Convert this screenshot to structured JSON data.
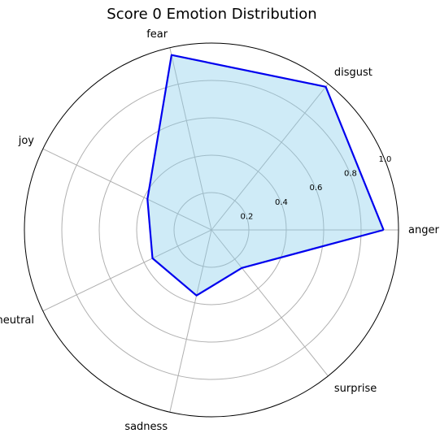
{
  "chart_data": {
    "type": "radar",
    "title": "Score 0 Emotion Distribution",
    "categories": [
      "anger",
      "disgust",
      "fear",
      "joy",
      "neutral",
      "sadness",
      "surprise"
    ],
    "series": [
      {
        "values": [
          0.92,
          0.98,
          0.96,
          0.38,
          0.35,
          0.36,
          0.26
        ]
      }
    ],
    "r_ticks": [
      "0.2",
      "0.4",
      "0.6",
      "0.8",
      "1.0"
    ],
    "r_tick_values": [
      0.2,
      0.4,
      0.6,
      0.8,
      1.0
    ],
    "rlim": [
      0,
      1.0
    ],
    "grid": true,
    "colors": {
      "line": "#0000ee",
      "fill": "#87ceeb",
      "grid": "#b0b0b0",
      "outer": "#000000"
    }
  }
}
